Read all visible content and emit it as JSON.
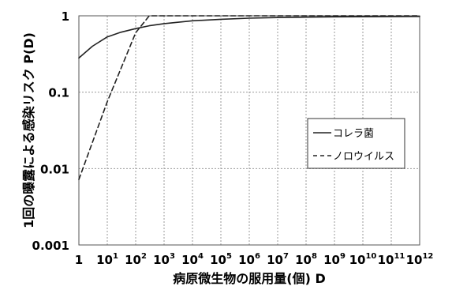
{
  "chart_data": {
    "type": "line",
    "title": "",
    "xlabel": "病原微生物の服用量(個)  D",
    "ylabel": "1回の曝露による感染リスク  P(D)",
    "x_scale": "log",
    "y_scale": "log",
    "xlim": [
      1,
      1000000000000.0
    ],
    "ylim": [
      0.001,
      1
    ],
    "grid": true,
    "legend_position": "right-middle",
    "x_ticks": [
      {
        "value": 1,
        "base": "1",
        "exp": ""
      },
      {
        "value": 10,
        "base": "10",
        "exp": "1"
      },
      {
        "value": 100,
        "base": "10",
        "exp": "2"
      },
      {
        "value": 1000,
        "base": "10",
        "exp": "3"
      },
      {
        "value": 10000,
        "base": "10",
        "exp": "4"
      },
      {
        "value": 100000,
        "base": "10",
        "exp": "5"
      },
      {
        "value": 1000000,
        "base": "10",
        "exp": "6"
      },
      {
        "value": 10000000,
        "base": "10",
        "exp": "7"
      },
      {
        "value": 100000000,
        "base": "10",
        "exp": "8"
      },
      {
        "value": 1000000000,
        "base": "10",
        "exp": "9"
      },
      {
        "value": 10000000000,
        "base": "10",
        "exp": "10"
      },
      {
        "value": 100000000000,
        "base": "10",
        "exp": "11"
      },
      {
        "value": 1000000000000,
        "base": "10",
        "exp": "12"
      }
    ],
    "y_ticks": [
      {
        "value": 1,
        "label": "1"
      },
      {
        "value": 0.1,
        "label": "0.1"
      },
      {
        "value": 0.01,
        "label": "0.01"
      },
      {
        "value": 0.001,
        "label": "0.001"
      }
    ],
    "series": [
      {
        "name": "コレラ菌",
        "line_style": "solid",
        "color": "#222222",
        "x": [
          1,
          3,
          10,
          30,
          100,
          300,
          1000,
          10000,
          100000,
          1000000,
          10000000,
          100000000,
          1000000000,
          1000000000000
        ],
        "y": [
          0.28,
          0.4,
          0.53,
          0.61,
          0.68,
          0.74,
          0.79,
          0.86,
          0.9,
          0.93,
          0.95,
          0.96,
          0.97,
          0.98
        ]
      },
      {
        "name": "ノロウイルス",
        "line_style": "dashed",
        "color": "#222222",
        "x": [
          1,
          10,
          100,
          300,
          1000,
          1000000,
          1000000000000
        ],
        "y": [
          0.0072,
          0.075,
          0.6,
          1.0,
          1.0,
          1.0,
          1.0
        ]
      }
    ]
  }
}
